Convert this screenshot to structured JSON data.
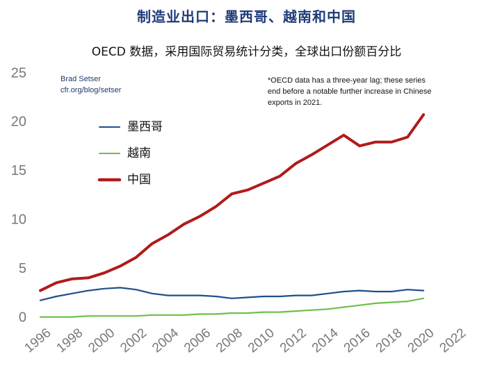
{
  "title": "制造业出口：墨西哥、越南和中国",
  "subtitle": "OECD 数据，采用国际贸易统计分类，全球出口份额百分比",
  "attribution": {
    "author": "Brad Setser",
    "url": "cfr.org/blog/setser"
  },
  "note": [
    "*OECD data has a three-year lag; these series",
    "end before a notable further increase in Chinese",
    "exports in 2021."
  ],
  "colors": {
    "mexico": "#1f4e8c",
    "vietnam": "#6cc04a",
    "china": "#b11a1a"
  },
  "chart_data": {
    "type": "line",
    "title": "制造业出口：墨西哥、越南和中国",
    "subtitle": "OECD 数据，采用国际贸易统计分类，全球出口份额百分比",
    "xlabel": "",
    "ylabel": "",
    "xlim": [
      1996,
      2022
    ],
    "ylim": [
      0,
      25
    ],
    "x_ticks": [
      "1996",
      "1998",
      "2000",
      "2002",
      "2004",
      "2006",
      "2008",
      "2010",
      "2012",
      "2014",
      "2016",
      "2018",
      "2020",
      "2022"
    ],
    "y_ticks": [
      "0",
      "5",
      "10",
      "15",
      "20",
      "25"
    ],
    "grid": false,
    "legend_position": "upper-left",
    "x": [
      1996,
      1997,
      1998,
      1999,
      2000,
      2001,
      2002,
      2003,
      2004,
      2005,
      2006,
      2007,
      2008,
      2009,
      2010,
      2011,
      2012,
      2013,
      2014,
      2015,
      2016,
      2017,
      2018,
      2019,
      2020
    ],
    "series": [
      {
        "name": "墨西哥",
        "color": "#1f4e8c",
        "values": [
          1.8,
          2.2,
          2.5,
          2.8,
          3.0,
          3.1,
          2.9,
          2.5,
          2.3,
          2.3,
          2.3,
          2.2,
          2.0,
          2.1,
          2.2,
          2.2,
          2.3,
          2.3,
          2.5,
          2.7,
          2.8,
          2.7,
          2.7,
          2.9,
          2.8
        ]
      },
      {
        "name": "越南",
        "color": "#6cc04a",
        "values": [
          0.1,
          0.1,
          0.1,
          0.2,
          0.2,
          0.2,
          0.2,
          0.3,
          0.3,
          0.3,
          0.4,
          0.4,
          0.5,
          0.5,
          0.6,
          0.6,
          0.7,
          0.8,
          0.9,
          1.1,
          1.3,
          1.5,
          1.6,
          1.7,
          2.0
        ]
      },
      {
        "name": "中国",
        "color": "#b11a1a",
        "values": [
          2.8,
          3.6,
          4.0,
          4.1,
          4.6,
          5.3,
          6.2,
          7.6,
          8.5,
          9.6,
          10.4,
          11.4,
          12.7,
          13.1,
          13.8,
          14.5,
          15.8,
          16.7,
          17.7,
          18.7,
          17.6,
          18.0,
          18.0,
          18.5,
          20.8
        ]
      }
    ]
  }
}
